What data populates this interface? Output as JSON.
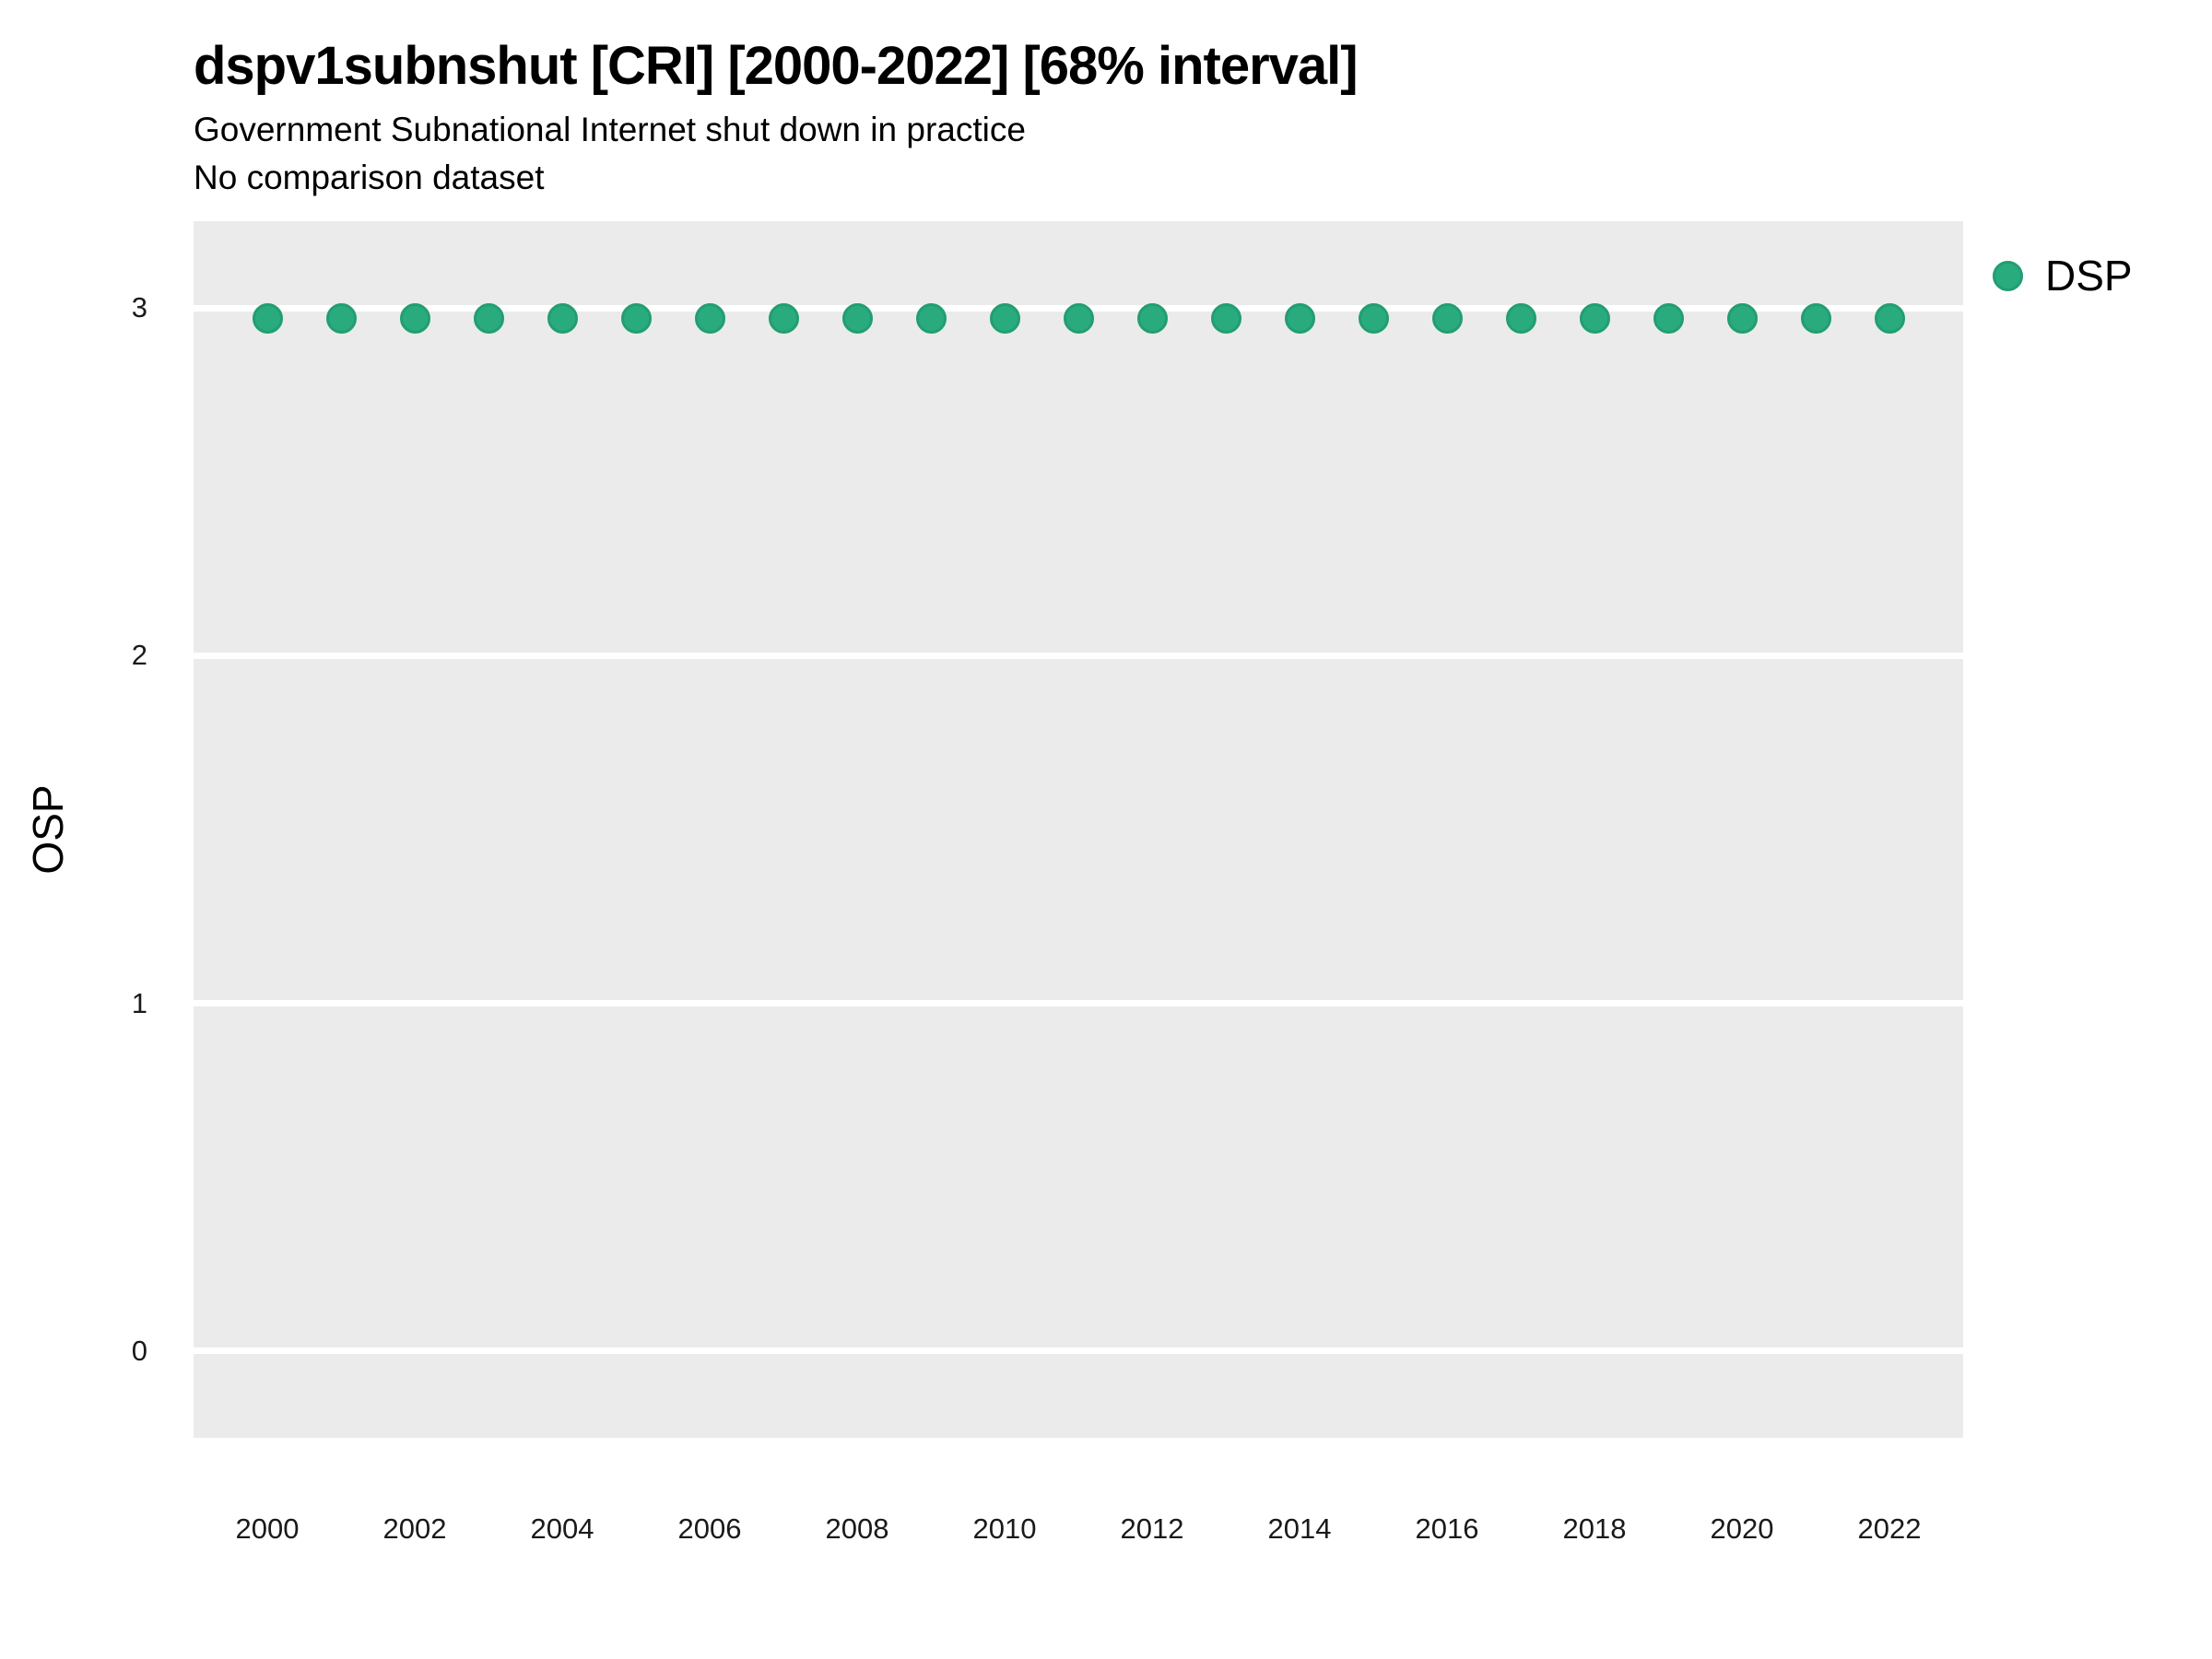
{
  "header": {
    "title": "dspv1subnshut [CRI] [2000-2022] [68% interval]",
    "subtitle": "Government Subnational Internet shut down in practice",
    "note": "No comparison dataset"
  },
  "legend": {
    "label": "DSP"
  },
  "chart_data": {
    "type": "scatter",
    "title": "dspv1subnshut [CRI] [2000-2022] [68% interval]",
    "subtitle": "Government Subnational Internet shut down in practice",
    "note": "No comparison dataset",
    "xlabel": "",
    "ylabel": "OSP",
    "xlim": [
      1999,
      2023
    ],
    "ylim": [
      -0.25,
      3.25
    ],
    "xticks": [
      2000,
      2002,
      2004,
      2006,
      2008,
      2010,
      2012,
      2014,
      2016,
      2018,
      2020,
      2022
    ],
    "yticks": [
      0,
      1,
      2,
      3
    ],
    "grid": "horizontal-major-only",
    "panel_bg": "#EBEBEB",
    "gridline_color": "#FFFFFF",
    "legend_position": "top-right",
    "series": [
      {
        "name": "DSP",
        "marker": "circle",
        "color": "#2AAB7E",
        "edge_color": "#219E72",
        "x": [
          2000,
          2001,
          2002,
          2003,
          2004,
          2005,
          2006,
          2007,
          2008,
          2009,
          2010,
          2011,
          2012,
          2013,
          2014,
          2015,
          2016,
          2017,
          2018,
          2019,
          2020,
          2021,
          2022
        ],
        "y": [
          2.97,
          2.97,
          2.97,
          2.97,
          2.97,
          2.97,
          2.97,
          2.97,
          2.97,
          2.97,
          2.97,
          2.97,
          2.97,
          2.97,
          2.97,
          2.97,
          2.97,
          2.97,
          2.97,
          2.97,
          2.97,
          2.97,
          2.97
        ]
      }
    ]
  }
}
